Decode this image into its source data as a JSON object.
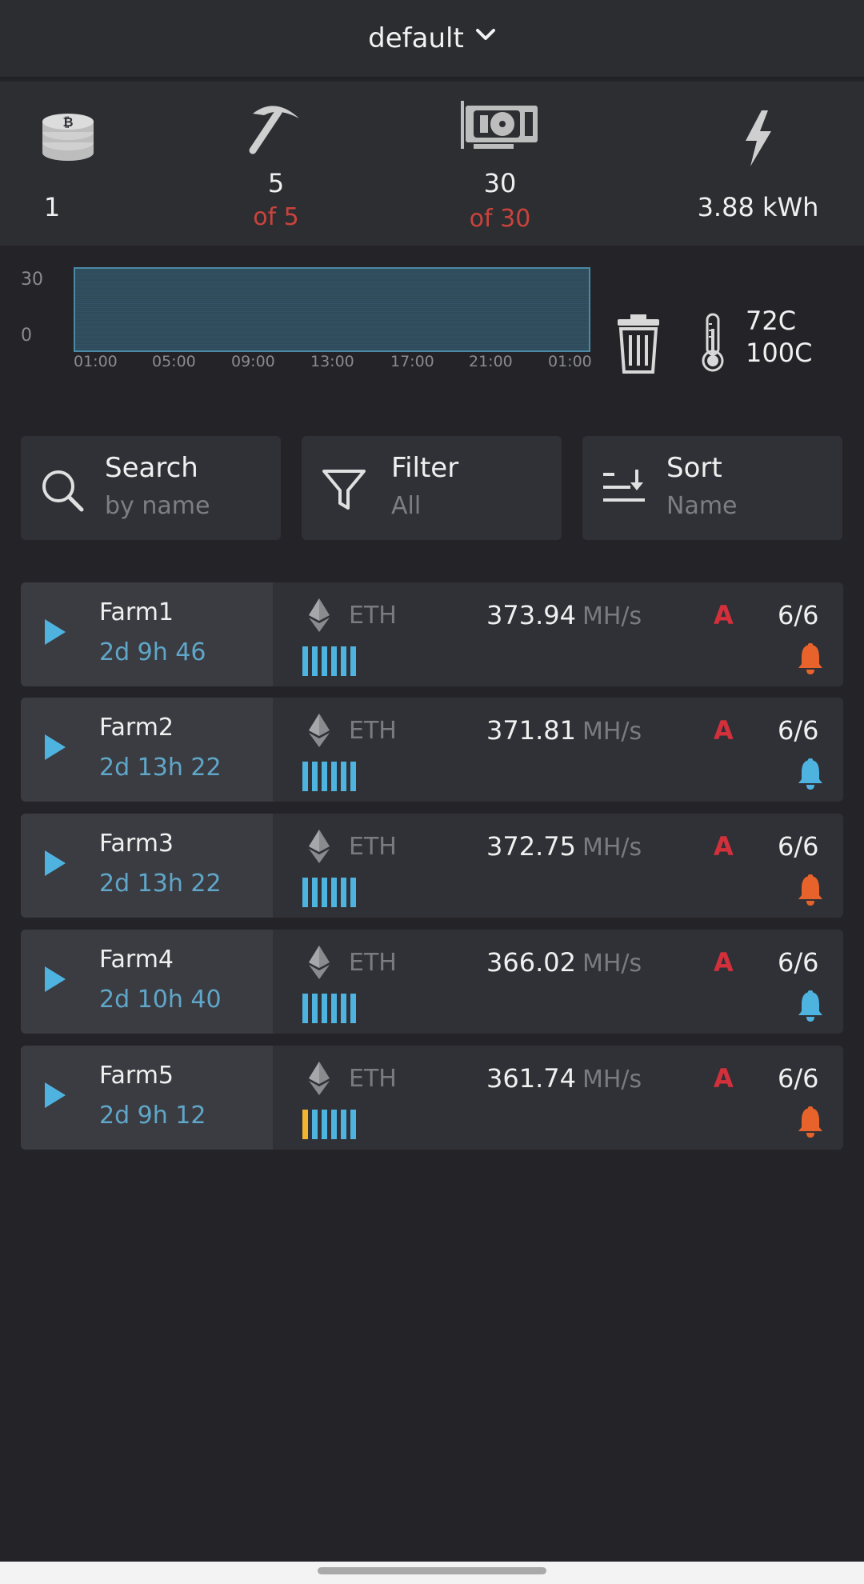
{
  "header": {
    "title": "default"
  },
  "stats": {
    "coins": {
      "value": "1"
    },
    "workers": {
      "value": "5",
      "sub": "of 5"
    },
    "gpus": {
      "value": "30",
      "sub": "of 30"
    },
    "power": {
      "value": "3.88 kWh"
    }
  },
  "chart_data": {
    "type": "area",
    "y_ticks": [
      "30",
      "0"
    ],
    "x_ticks": [
      "01:00",
      "05:00",
      "09:00",
      "13:00",
      "17:00",
      "21:00",
      "01:00"
    ],
    "ylim": [
      0,
      30
    ],
    "values": [
      30,
      30,
      30,
      30,
      30,
      30,
      30
    ]
  },
  "temperature": {
    "current": "72C",
    "max": "100C"
  },
  "controls": {
    "search": {
      "label": "Search",
      "sub": "by name"
    },
    "filter": {
      "label": "Filter",
      "sub": "All"
    },
    "sort": {
      "label": "Sort",
      "sub": "Name"
    }
  },
  "farms": [
    {
      "name": "Farm1",
      "uptime": "2d 9h 46",
      "coin": "ETH",
      "rate": "373.94",
      "unit": "MH/s",
      "algo": "A",
      "gpus": "6/6",
      "bell_color": "#e8632b",
      "warn_first_bar": false
    },
    {
      "name": "Farm2",
      "uptime": "2d 13h 22",
      "coin": "ETH",
      "rate": "371.81",
      "unit": "MH/s",
      "algo": "A",
      "gpus": "6/6",
      "bell_color": "#4fb3e0",
      "warn_first_bar": false
    },
    {
      "name": "Farm3",
      "uptime": "2d 13h 22",
      "coin": "ETH",
      "rate": "372.75",
      "unit": "MH/s",
      "algo": "A",
      "gpus": "6/6",
      "bell_color": "#e8632b",
      "warn_first_bar": false
    },
    {
      "name": "Farm4",
      "uptime": "2d 10h 40",
      "coin": "ETH",
      "rate": "366.02",
      "unit": "MH/s",
      "algo": "A",
      "gpus": "6/6",
      "bell_color": "#4fb3e0",
      "warn_first_bar": false
    },
    {
      "name": "Farm5",
      "uptime": "2d 9h 12",
      "coin": "ETH",
      "rate": "361.74",
      "unit": "MH/s",
      "algo": "A",
      "gpus": "6/6",
      "bell_color": "#e8632b",
      "warn_first_bar": true
    }
  ]
}
